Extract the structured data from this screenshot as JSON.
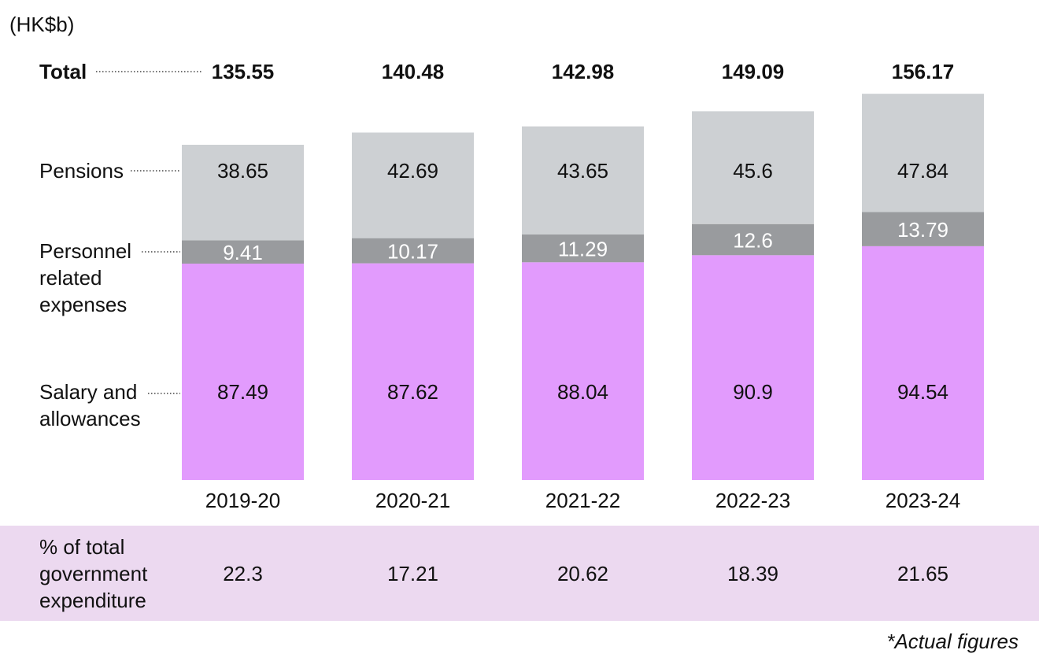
{
  "chart_data": {
    "type": "bar",
    "stacked": true,
    "unit_label": "(HK$b)",
    "categories": [
      "2019-20",
      "2020-21",
      "2021-22",
      "2022-23",
      "2023-24"
    ],
    "series": [
      {
        "name": "Salary and allowances",
        "label_lines": [
          "Salary and",
          "allowances"
        ],
        "color": "#e29bfd",
        "values": [
          87.49,
          87.62,
          88.04,
          90.9,
          94.54
        ],
        "text_color": "#111111"
      },
      {
        "name": "Personnel related expenses",
        "label_lines": [
          "Personnel",
          "related",
          "expenses"
        ],
        "color": "#999b9e",
        "values": [
          9.41,
          10.17,
          11.29,
          12.6,
          13.79
        ],
        "text_color": "#ffffff"
      },
      {
        "name": "Pensions",
        "label_lines": [
          "Pensions"
        ],
        "color": "#cdd0d3",
        "values": [
          38.65,
          42.69,
          43.65,
          45.6,
          47.84
        ],
        "text_color": "#111111"
      }
    ],
    "totals_label": "Total",
    "totals": [
      "135.55",
      "140.48",
      "142.98",
      "149.09",
      "156.17"
    ],
    "value_labels": [
      [
        "87.49",
        "87.62",
        "88.04",
        "90.9",
        "94.54"
      ],
      [
        "9.41",
        "10.17",
        "11.29",
        "12.6",
        "13.79"
      ],
      [
        "38.65",
        "42.69",
        "43.65",
        "45.6",
        "47.84"
      ]
    ],
    "percent_row": {
      "label_lines": [
        "% of total",
        "government",
        "expenditure"
      ],
      "values": [
        "22.3",
        "17.21",
        "20.62",
        "18.39",
        "21.65"
      ],
      "background": "#ecd9f0"
    },
    "footnote": "*Actual figures",
    "ylim": [
      0,
      160
    ]
  }
}
